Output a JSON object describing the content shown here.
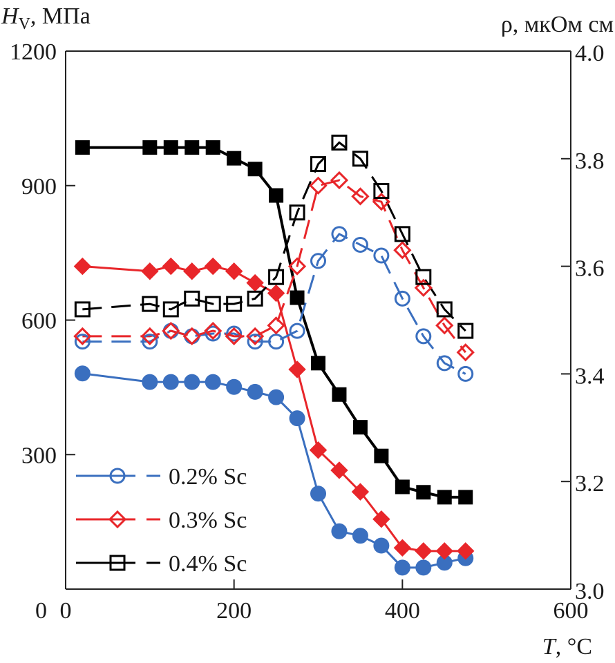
{
  "chart_data": {
    "type": "line",
    "title": "",
    "xlabel": "T, °C",
    "xlabel_italic_part": "T",
    "xlabel_rest": ", °C",
    "ylabel_left_italic": "H",
    "ylabel_left_sub": "V",
    "ylabel_left_rest": ", МПа",
    "ylabel_right": "ρ, мкОм см",
    "xlim": [
      0,
      600
    ],
    "ylim_left": [
      0,
      1200
    ],
    "ylim_right": [
      3.0,
      4.0
    ],
    "x_ticks": [
      "0",
      "200",
      "400",
      "600"
    ],
    "x_tick_values": [
      0,
      200,
      400,
      600
    ],
    "y_left_ticks": [
      "0",
      "300",
      "600",
      "900",
      "1200"
    ],
    "y_left_tick_values": [
      0,
      300,
      600,
      900,
      1200
    ],
    "y_right_ticks": [
      "3.0",
      "3.2",
      "3.4",
      "3.6",
      "3.8",
      "4.0"
    ],
    "y_right_tick_values": [
      3.0,
      3.2,
      3.4,
      3.6,
      3.8,
      4.0
    ],
    "grid": false,
    "legend_position": "bottom-left",
    "x": [
      20,
      100,
      125,
      150,
      175,
      200,
      225,
      250,
      275,
      300,
      325,
      350,
      375,
      400,
      425,
      450,
      475
    ],
    "series": [
      {
        "name": "0.2% Sc",
        "quantity": "Hv",
        "axis": "left",
        "marker": "circle-filled",
        "line": "solid",
        "color": "#3a6fbf",
        "values": [
          481,
          462,
          462,
          462,
          462,
          451,
          440,
          428,
          381,
          213,
          129,
          119,
          97,
          48,
          48,
          59,
          69
        ]
      },
      {
        "name": "0.3% Sc",
        "quantity": "Hv",
        "axis": "left",
        "marker": "diamond-filled",
        "line": "solid",
        "color": "#e8262a",
        "values": [
          720,
          709,
          720,
          709,
          720,
          709,
          683,
          660,
          490,
          310,
          265,
          217,
          156,
          92,
          85,
          85,
          85
        ]
      },
      {
        "name": "0.4% Sc",
        "quantity": "Hv",
        "axis": "left",
        "marker": "square-filled",
        "line": "solid",
        "color": "#000000",
        "values": [
          985,
          985,
          985,
          985,
          985,
          961,
          937,
          878,
          650,
          504,
          434,
          361,
          297,
          228,
          216,
          205,
          205
        ]
      },
      {
        "name": "0.2% Sc",
        "quantity": "rho",
        "axis": "right",
        "marker": "circle-open",
        "line": "dashed",
        "color": "#3a6fbf",
        "values": [
          3.46,
          3.46,
          3.48,
          3.47,
          3.475,
          3.475,
          3.46,
          3.46,
          3.48,
          3.61,
          3.66,
          3.64,
          3.62,
          3.54,
          3.47,
          3.42,
          3.4
        ]
      },
      {
        "name": "0.3% Sc",
        "quantity": "rho",
        "axis": "right",
        "marker": "diamond-open",
        "line": "dashed",
        "color": "#e8262a",
        "values": [
          3.47,
          3.47,
          3.48,
          3.47,
          3.48,
          3.47,
          3.47,
          3.49,
          3.6,
          3.75,
          3.76,
          3.73,
          3.72,
          3.63,
          3.56,
          3.49,
          3.44
        ]
      },
      {
        "name": "0.4% Sc",
        "quantity": "rho",
        "axis": "right",
        "marker": "square-open",
        "line": "dashed",
        "color": "#000000",
        "values": [
          3.52,
          3.53,
          3.52,
          3.54,
          3.53,
          3.53,
          3.54,
          3.58,
          3.7,
          3.79,
          3.83,
          3.8,
          3.74,
          3.66,
          3.58,
          3.52,
          3.48
        ]
      }
    ],
    "legend": [
      {
        "label": "0.2% Sc",
        "marker": "circle-open",
        "color": "#3a6fbf"
      },
      {
        "label": "0.3% Sc",
        "marker": "diamond-open",
        "color": "#e8262a"
      },
      {
        "label": "0.4% Sc",
        "marker": "square-open",
        "color": "#000000"
      }
    ]
  }
}
